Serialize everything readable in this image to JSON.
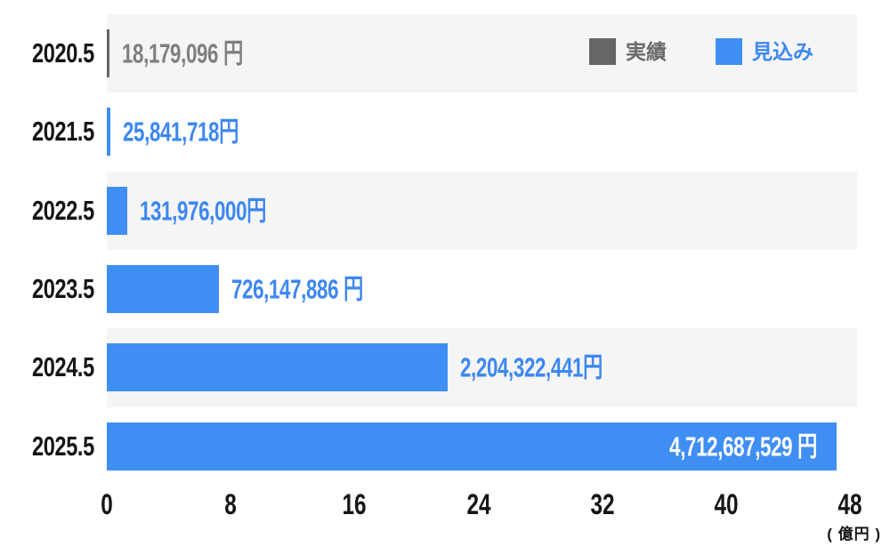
{
  "chart_data": {
    "type": "bar",
    "orientation": "horizontal",
    "title": "",
    "categories": [
      "2020.5",
      "2021.5",
      "2022.5",
      "2023.5",
      "2024.5",
      "2025.5"
    ],
    "values": [
      18179096,
      25841718,
      131976000,
      726147886,
      2204322441,
      4712687529
    ],
    "value_labels": [
      "18,179,096 円",
      "25,841,718円",
      "131,976,000円",
      "726,147,886 円",
      "2,204,322,441円",
      "4,712,687,529 円"
    ],
    "series_of_row": [
      "実績",
      "見込み",
      "見込み",
      "見込み",
      "見込み",
      "見込み"
    ],
    "bar_colors": [
      "#666666",
      "#3F8EF3",
      "#3F8EF3",
      "#3F8EF3",
      "#3F8EF3",
      "#3F8EF3"
    ],
    "value_label_colors": [
      "#7F7F7F",
      "#3D87F0",
      "#3D87F0",
      "#3D87F0",
      "#3D87F0",
      "#FFFFFF"
    ],
    "value_label_inside": [
      false,
      false,
      false,
      false,
      false,
      true
    ],
    "row_band_colors": [
      "#F5F5F6",
      "#FFFFFF",
      "#F5F5F6",
      "#FFFFFF",
      "#F5F5F6",
      "#FFFFFF"
    ],
    "x_ticks": [
      "0",
      "8",
      "16",
      "24",
      "32",
      "40",
      "48"
    ],
    "x_tick_values": [
      0,
      8,
      16,
      24,
      32,
      40,
      48
    ],
    "xlim": [
      0,
      48
    ],
    "x_unit_oku_yen": 100000000,
    "axis_unit": "( 億円 )",
    "grid": false,
    "legend_position": "top-right",
    "legend": [
      {
        "label": "実績",
        "swatch_color": "#666666",
        "text_color": "#6A6A6A"
      },
      {
        "label": "見込み",
        "swatch_color": "#3F8EF3",
        "text_color": "#3D87F0"
      }
    ]
  },
  "colors": {
    "background": "#FFFFFF",
    "axis_text": "#151515",
    "band_gray": "#F5F5F6",
    "accent_blue": "#3F8EF3",
    "actual_gray": "#666666"
  }
}
